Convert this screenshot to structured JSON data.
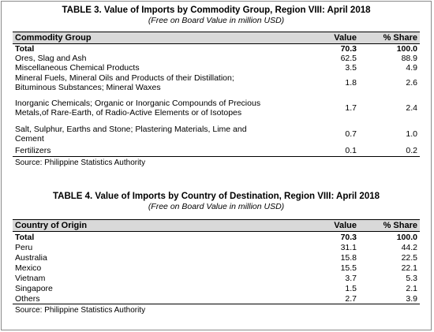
{
  "table3": {
    "title": "TABLE 3. Value of Imports by Commodity Group, Region VIII: April 2018",
    "subtitle": "(Free on Board Value in million USD)",
    "headers": {
      "name": "Commodity Group",
      "value": "Value",
      "share": "% Share"
    },
    "rows": [
      {
        "name": "Total",
        "value": "70.3",
        "share": "100.0"
      },
      {
        "name": "Ores, Slag and Ash",
        "value": "62.5",
        "share": "88.9"
      },
      {
        "name": "Miscellaneous Chemical Products",
        "value": "3.5",
        "share": "4.9"
      },
      {
        "name": "Mineral Fuels, Mineral Oils and Products of their Distillation; Bituminous Substances; Mineral Waxes",
        "value": "1.8",
        "share": "2.6"
      },
      {
        "name": "Inorganic Chemicals; Organic or Inorganic Compounds of Precious Metals,of Rare-Earth, of Radio-Active Elements or of Isotopes",
        "value": "1.7",
        "share": "2.4"
      },
      {
        "name": "Salt, Sulphur, Earths and Stone; Plastering Materials, Lime and Cement",
        "value": "0.7",
        "share": "1.0"
      },
      {
        "name": "Fertilizers",
        "value": "0.1",
        "share": "0.2"
      }
    ],
    "source": "Source: Philippine Statistics Authority"
  },
  "table4": {
    "title": "TABLE 4. Value of Imports by Country of Destination, Region VIII: April 2018",
    "subtitle": "(Free on Board Value in million USD)",
    "headers": {
      "name": "Country of Origin",
      "value": "Value",
      "share": "% Share"
    },
    "rows": [
      {
        "name": "Total",
        "value": "70.3",
        "share": "100.0"
      },
      {
        "name": "Peru",
        "value": "31.1",
        "share": "44.2"
      },
      {
        "name": "Australia",
        "value": "15.8",
        "share": "22.5"
      },
      {
        "name": "Mexico",
        "value": "15.5",
        "share": "22.1"
      },
      {
        "name": "Vietnam",
        "value": "3.7",
        "share": "5.3"
      },
      {
        "name": "Singapore",
        "value": "1.5",
        "share": "2.1"
      },
      {
        "name": "Others",
        "value": "2.7",
        "share": "3.9"
      }
    ],
    "source": "Source: Philippine Statistics Authority"
  }
}
